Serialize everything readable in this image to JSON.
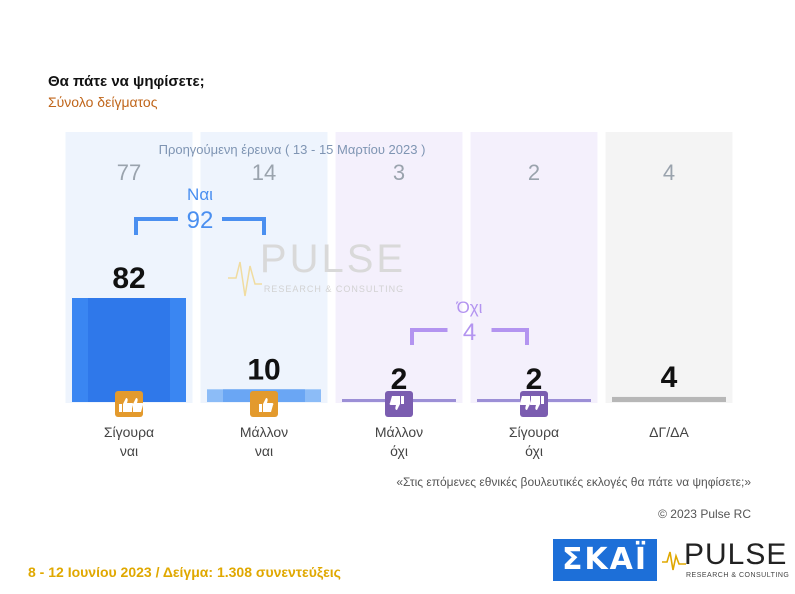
{
  "header": {
    "title": "Θα πάτε να ψηφίσετε;",
    "subtitle": "Σύνολο δείγματος"
  },
  "chart_data": {
    "type": "bar",
    "title": "Θα πάτε να ψηφίσετε;",
    "subtitle": "Σύνολο δείγματος",
    "categories": [
      [
        "Σίγουρα",
        "ναι"
      ],
      [
        "Μάλλον",
        "ναι"
      ],
      [
        "Μάλλον",
        "όχι"
      ],
      [
        "Σίγουρα",
        "όχι"
      ],
      [
        "ΔΓ/ΔΑ"
      ]
    ],
    "values": [
      82,
      10,
      2,
      2,
      4
    ],
    "previous": {
      "label": "Προηγούμενη έρευνα ( 13 - 15 Μαρτίου 2023 )",
      "values": [
        77,
        14,
        3,
        2,
        4
      ]
    },
    "groups": [
      {
        "label": "Ναι",
        "value": 92
      },
      {
        "label": "Όχι",
        "value": 4
      }
    ],
    "colors": {
      "yes_bar": "#3a86f2",
      "yes_bar_light": "#8cbcf7",
      "no_bar": "#9c8fd6",
      "dk_bar": "#b7b7b7",
      "yes_bracket": "#4a8ff0",
      "no_bracket": "#b394f0",
      "col_bg_yes": "#eef4fd",
      "col_bg_no": "#f4f0fc",
      "col_bg_dk": "#f4f4f4",
      "icon_yes": "#e39a2d",
      "icon_no": "#7b5db0"
    },
    "icons": [
      "double-thumbs-up-icon",
      "thumb-up-icon",
      "thumb-down-icon",
      "double-thumbs-down-icon"
    ],
    "ylim": [
      0,
      100
    ]
  },
  "watermark": {
    "word": "PULSE",
    "sub": "RESEARCH & CONSULTING"
  },
  "quote": "«Στις επόμενες εθνικές βουλευτικές εκλογές θα πάτε να ψηφίσετε;»",
  "copyright": "© 2023 Pulse RC",
  "footer": "8 - 12 Ιουνίου 2023 / Δείγμα: 1.308 συνεντεύξεις",
  "logos": {
    "skai": "ΣΚΑΪ",
    "pulse_word": "PULSE",
    "pulse_sub": "RESEARCH & CONSULTING"
  }
}
